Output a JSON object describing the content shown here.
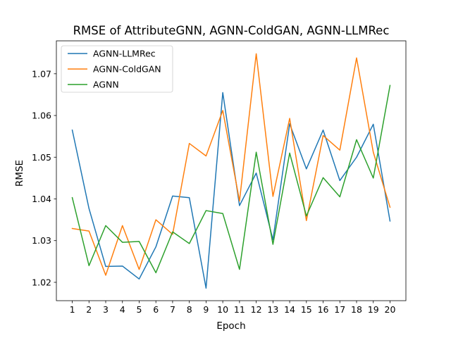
{
  "chart_data": {
    "type": "line",
    "title": "RMSE of AttributeGNN, AGNN-ColdGAN, AGNN-LLMRec",
    "xlabel": "Epoch",
    "ylabel": "RMSE",
    "x": [
      1,
      2,
      3,
      4,
      5,
      6,
      7,
      8,
      9,
      10,
      11,
      12,
      13,
      14,
      15,
      16,
      17,
      18,
      19,
      20
    ],
    "xlim": [
      0.05,
      20.95
    ],
    "ylim": [
      1.0156,
      1.0779
    ],
    "yticks": [
      1.02,
      1.03,
      1.04,
      1.05,
      1.06,
      1.07
    ],
    "grid": false,
    "legend_position": "upper-left",
    "series": [
      {
        "name": "AGNN-LLMRec",
        "color": "#1f77b4",
        "values": [
          1.0565,
          1.0377,
          1.0238,
          1.0239,
          1.0208,
          1.0285,
          1.0407,
          1.0403,
          1.0186,
          1.0655,
          1.0384,
          1.0462,
          1.0302,
          1.058,
          1.0472,
          1.0565,
          1.0444,
          1.05,
          1.0579,
          1.0347
        ]
      },
      {
        "name": "AGNN-ColdGAN",
        "color": "#ff7f0e",
        "values": [
          1.0329,
          1.0323,
          1.0217,
          1.0336,
          1.0231,
          1.035,
          1.0315,
          1.0533,
          1.0503,
          1.0612,
          1.0395,
          1.0748,
          1.0406,
          1.0593,
          1.0348,
          1.0552,
          1.0517,
          1.0738,
          1.0512,
          1.038
        ]
      },
      {
        "name": "AGNN",
        "color": "#2ca02c",
        "values": [
          1.0403,
          1.024,
          1.0336,
          1.0296,
          1.0298,
          1.0223,
          1.0321,
          1.0293,
          1.0372,
          1.0365,
          1.0231,
          1.0512,
          1.0291,
          1.051,
          1.0359,
          1.0451,
          1.0405,
          1.0542,
          1.045,
          1.0672
        ]
      }
    ]
  }
}
